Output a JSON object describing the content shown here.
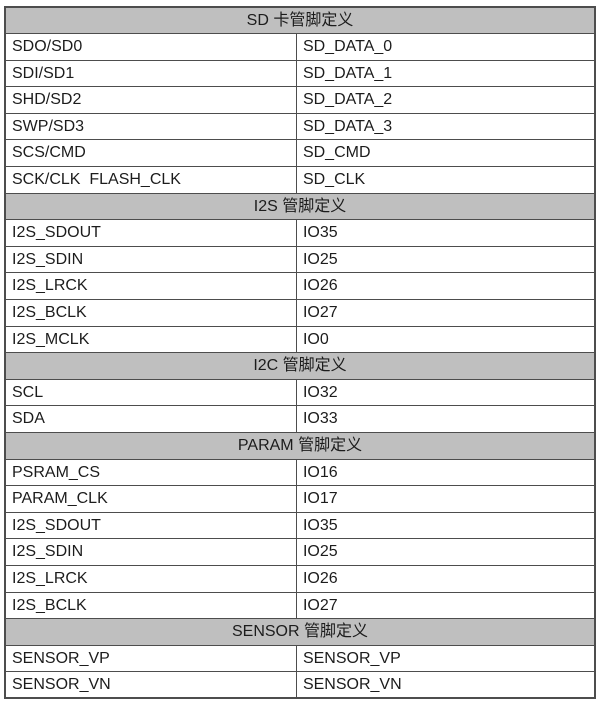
{
  "colors": {
    "header_bg": "#bfbfbf",
    "border": "#4d4d4d",
    "text": "#1c1c1c",
    "page_bg": "#ffffff"
  },
  "table": {
    "sections": [
      {
        "title": "SD 卡管脚定义",
        "rows": [
          [
            "SDO/SD0",
            "SD_DATA_0"
          ],
          [
            "SDI/SD1",
            "SD_DATA_1"
          ],
          [
            "SHD/SD2",
            "SD_DATA_2"
          ],
          [
            "SWP/SD3",
            "SD_DATA_3"
          ],
          [
            "SCS/CMD",
            "SD_CMD"
          ],
          [
            "SCK/CLK  FLASH_CLK",
            "SD_CLK"
          ]
        ]
      },
      {
        "title": "I2S 管脚定义",
        "rows": [
          [
            "I2S_SDOUT",
            "IO35"
          ],
          [
            "I2S_SDIN",
            "IO25"
          ],
          [
            "I2S_LRCK",
            "IO26"
          ],
          [
            "I2S_BCLK",
            "IO27"
          ],
          [
            "I2S_MCLK",
            "IO0"
          ]
        ]
      },
      {
        "title": "I2C 管脚定义",
        "rows": [
          [
            "SCL",
            "IO32"
          ],
          [
            "SDA",
            "IO33"
          ]
        ]
      },
      {
        "title": "PARAM 管脚定义",
        "rows": [
          [
            "PSRAM_CS",
            "IO16"
          ],
          [
            "PARAM_CLK",
            "IO17"
          ],
          [
            "I2S_SDOUT",
            "IO35"
          ],
          [
            "I2S_SDIN",
            "IO25"
          ],
          [
            "I2S_LRCK",
            "IO26"
          ],
          [
            "I2S_BCLK",
            "IO27"
          ]
        ]
      },
      {
        "title": "SENSOR 管脚定义",
        "rows": [
          [
            "SENSOR_VP",
            "SENSOR_VP"
          ],
          [
            "SENSOR_VN",
            "SENSOR_VN"
          ]
        ]
      }
    ]
  }
}
